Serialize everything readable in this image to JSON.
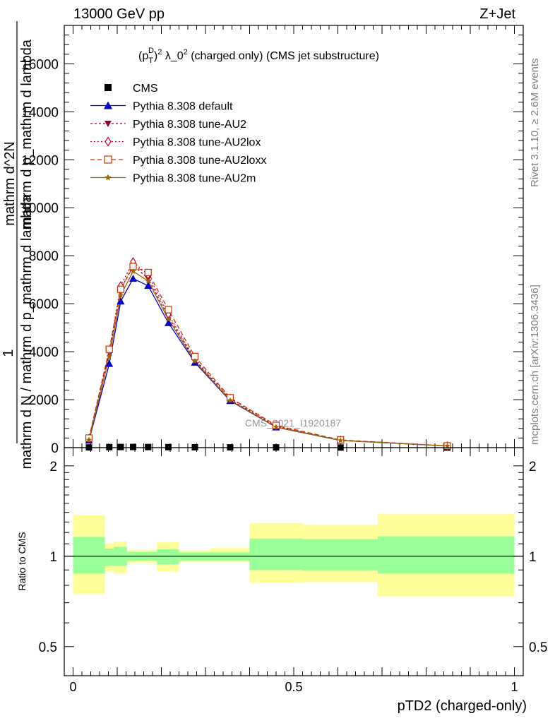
{
  "header": {
    "energy_label": "13000 GeV pp",
    "process_label": "Z+Jet",
    "title_p": "(p",
    "title_sub": "T",
    "title_sup": "D",
    "title_rest_a": ")",
    "title_sq": "2",
    "title_lambda": " λ_0",
    "title_sq2": "2",
    "title_tail": " (charged only) (CMS jet substructure)"
  },
  "side": {
    "rivet_label": "Rivet 3.1.10, ≥ 2.6M events",
    "mcplots_label": "mcplots.cern.ch [arXiv:1306.3436]"
  },
  "watermark": "CMS_2021_I1920187",
  "y_label_main": {
    "one": "1",
    "denominator": "mathrm d N / mathrm d p_mathrm d lambda",
    "numerator": "mathrm d^2N",
    "line2": "mathrm d p_mathrm d lambda"
  },
  "y_label_ratio": "Ratio to CMS",
  "x_label": "pTD2 (charged-only)",
  "chart_data": [
    {
      "panel": "main",
      "type": "line",
      "xlim": [
        -0.02,
        1.02
      ],
      "ylim": [
        0,
        17600
      ],
      "yticks": [
        0,
        2000,
        4000,
        6000,
        8000,
        10000,
        12000,
        14000,
        16000
      ],
      "ytick_labels": [
        "0",
        "2000",
        "4000",
        "6000",
        "8000",
        "10000",
        "12000",
        "14000",
        "16000"
      ],
      "x": [
        0.036,
        0.082,
        0.108,
        0.136,
        0.17,
        0.216,
        0.276,
        0.356,
        0.46,
        0.606,
        0.848
      ],
      "series": [
        {
          "name": "CMS",
          "marker": "square",
          "color": "#000000",
          "dash": "none",
          "values": [
            10,
            22,
            26,
            27,
            24,
            20,
            16,
            12,
            9,
            5,
            3
          ]
        },
        {
          "name": "Pythia 8.308 default",
          "marker": "triangle-up",
          "color": "#0000cc",
          "dash": "none",
          "values": [
            300,
            3500,
            6100,
            7050,
            6750,
            5200,
            3550,
            1950,
            850,
            300,
            70
          ]
        },
        {
          "name": "Pythia 8.308 tune-AU2",
          "marker": "triangle-down",
          "color": "#990033",
          "dash": "3,3",
          "values": [
            350,
            3950,
            6600,
            7600,
            7050,
            5450,
            3650,
            2000,
            880,
            300,
            70
          ]
        },
        {
          "name": "Pythia 8.308 tune-AU2lox",
          "marker": "diamond-open",
          "color": "#cc0033",
          "dash": "2,3",
          "values": [
            380,
            4050,
            6750,
            7750,
            7200,
            5550,
            3700,
            2050,
            900,
            310,
            72
          ]
        },
        {
          "name": "Pythia 8.308 tune-AU2loxx",
          "marker": "square-open",
          "color": "#cc3300",
          "dash": "6,4",
          "values": [
            400,
            4100,
            6600,
            7550,
            7300,
            5750,
            3800,
            2080,
            930,
            320,
            75
          ]
        },
        {
          "name": "Pythia 8.308 tune-AU2m",
          "marker": "star",
          "color": "#996600",
          "dash": "none",
          "values": [
            320,
            3800,
            6350,
            7350,
            6950,
            5350,
            3600,
            1970,
            860,
            300,
            70
          ]
        }
      ]
    },
    {
      "panel": "ratio",
      "type": "area",
      "xlim": [
        -0.02,
        1.02
      ],
      "ylim": [
        0.4,
        2.3
      ],
      "yscale": "log",
      "yticks": [
        0.5,
        1,
        2
      ],
      "ytick_labels": [
        "0.5",
        "1",
        "2"
      ],
      "xticks": [
        0,
        0.5,
        1
      ],
      "xtick_labels": [
        "0",
        "0.5",
        "1"
      ],
      "reference_line": 1,
      "bins": [
        {
          "x0": 0.0,
          "x1": 0.072,
          "inner": [
            0.875,
            1.16
          ],
          "outer": [
            0.75,
            1.37
          ]
        },
        {
          "x0": 0.072,
          "x1": 0.092,
          "inner": [
            0.93,
            1.06
          ],
          "outer": [
            0.89,
            1.105
          ]
        },
        {
          "x0": 0.092,
          "x1": 0.122,
          "inner": [
            0.93,
            1.075
          ],
          "outer": [
            0.875,
            1.12
          ]
        },
        {
          "x0": 0.122,
          "x1": 0.15,
          "inner": [
            0.965,
            1.035
          ],
          "outer": [
            0.95,
            1.05
          ]
        },
        {
          "x0": 0.15,
          "x1": 0.19,
          "inner": [
            0.965,
            1.035
          ],
          "outer": [
            0.95,
            1.05
          ]
        },
        {
          "x0": 0.19,
          "x1": 0.24,
          "inner": [
            0.94,
            1.055
          ],
          "outer": [
            0.89,
            1.115
          ]
        },
        {
          "x0": 0.24,
          "x1": 0.31,
          "inner": [
            0.965,
            1.03
          ],
          "outer": [
            0.955,
            1.045
          ]
        },
        {
          "x0": 0.31,
          "x1": 0.4,
          "inner": [
            0.965,
            1.03
          ],
          "outer": [
            0.955,
            1.065
          ]
        },
        {
          "x0": 0.4,
          "x1": 0.52,
          "inner": [
            0.9,
            1.145
          ],
          "outer": [
            0.815,
            1.29
          ]
        },
        {
          "x0": 0.52,
          "x1": 0.69,
          "inner": [
            0.895,
            1.14
          ],
          "outer": [
            0.82,
            1.275
          ]
        },
        {
          "x0": 0.69,
          "x1": 1.0,
          "inner": [
            0.875,
            1.165
          ],
          "outer": [
            0.735,
            1.38
          ]
        }
      ],
      "inner_color": "#99ff99",
      "outer_color": "#ffff99"
    }
  ]
}
